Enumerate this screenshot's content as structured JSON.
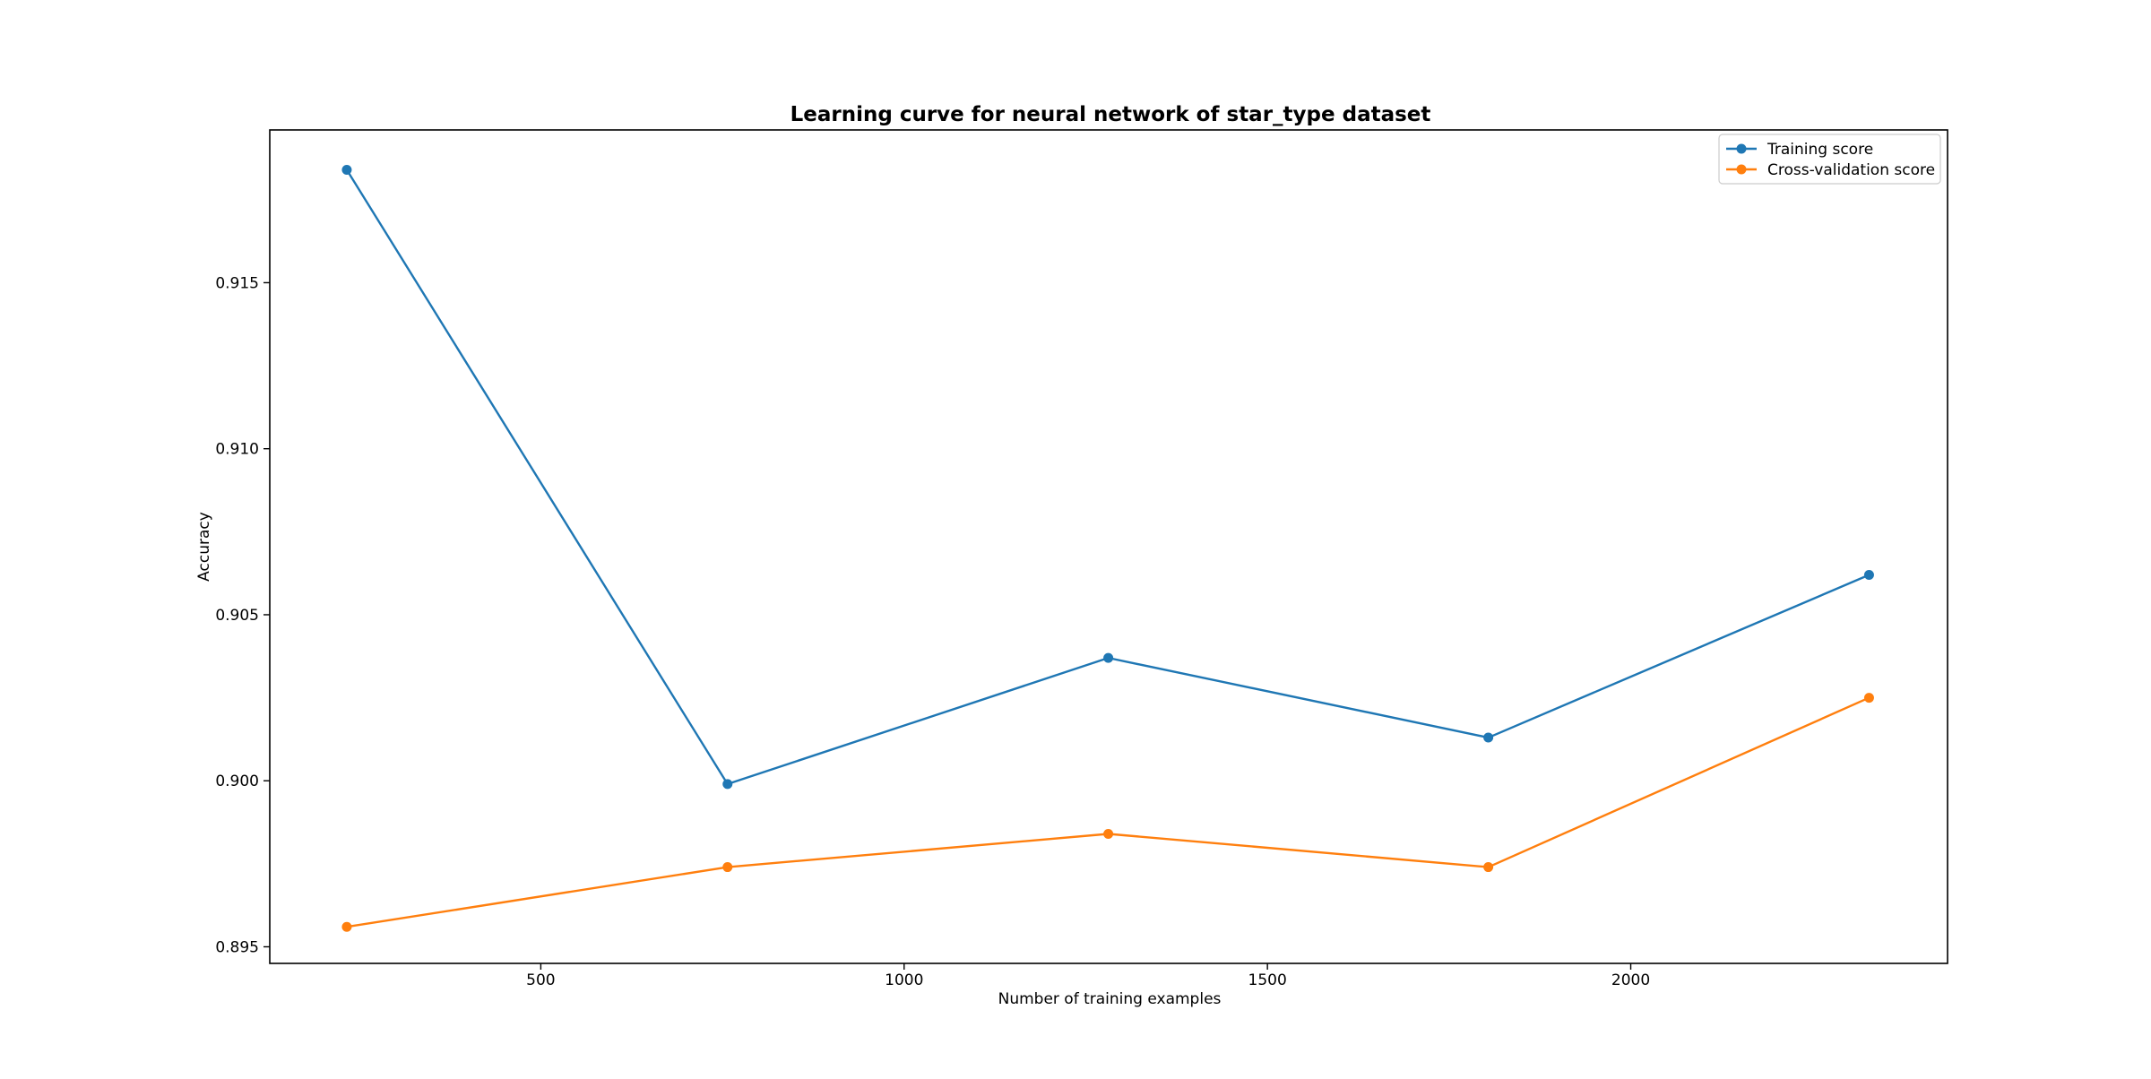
{
  "chart_data": {
    "type": "line",
    "title": "Learning curve for neural network of star_type dataset",
    "xlabel": "Number of training examples",
    "ylabel": "Accuracy",
    "x": [
      233,
      757,
      1281,
      1804,
      2328
    ],
    "series": [
      {
        "name": "Training score",
        "color": "#1f77b4",
        "values": [
          0.9184,
          0.8999,
          0.9037,
          0.9013,
          0.9062
        ]
      },
      {
        "name": "Cross-validation score",
        "color": "#ff7f0e",
        "values": [
          0.8956,
          0.8974,
          0.8984,
          0.8974,
          0.9025
        ]
      }
    ],
    "xlim": [
      127,
      2436
    ],
    "ylim": [
      0.8945,
      0.9196
    ],
    "x_ticks": [
      500,
      1000,
      1500,
      2000
    ],
    "x_tick_labels": [
      "500",
      "1000",
      "1500",
      "2000"
    ],
    "y_ticks": [
      0.895,
      0.9,
      0.905,
      0.91,
      0.915
    ],
    "y_tick_labels": [
      "0.895",
      "0.900",
      "0.905",
      "0.910",
      "0.915"
    ],
    "grid": false,
    "legend_position": "top-right"
  }
}
